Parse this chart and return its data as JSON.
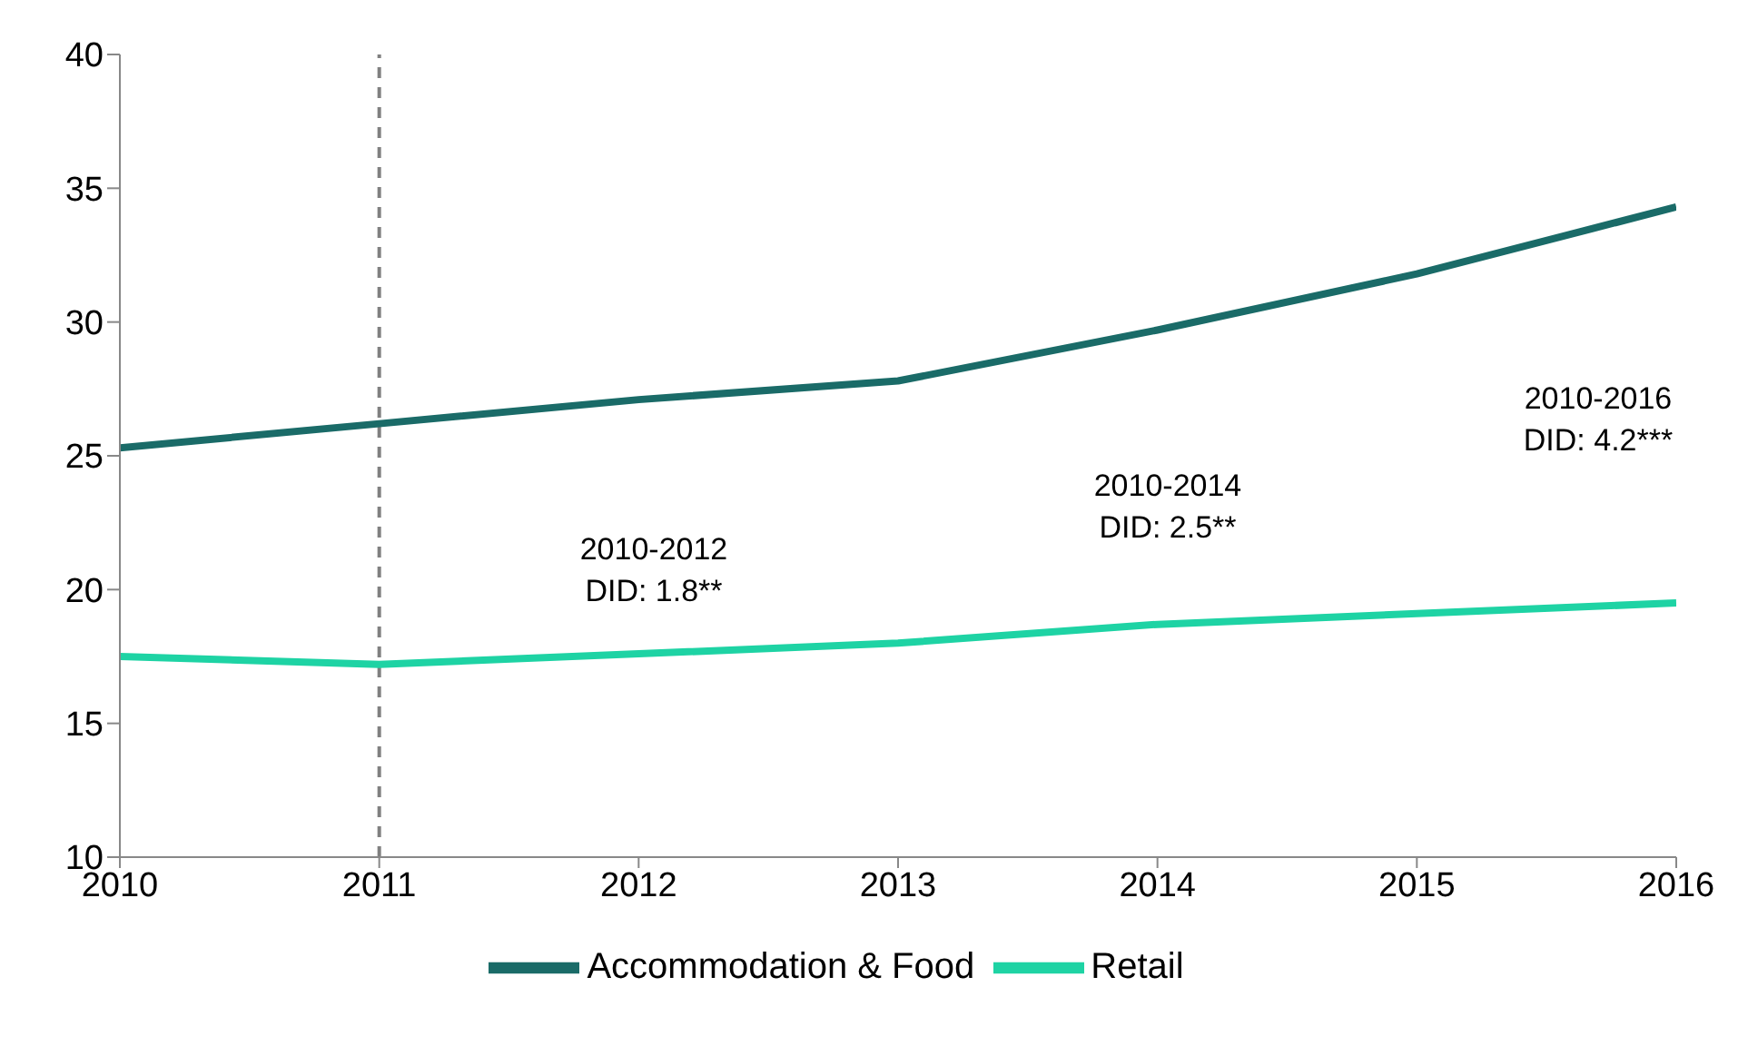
{
  "chart_data": {
    "type": "line",
    "x": [
      2010,
      2011,
      2012,
      2013,
      2014,
      2015,
      2016
    ],
    "series": [
      {
        "name": "Accommodation & Food",
        "color": "#1a6b68",
        "values": [
          25.3,
          26.2,
          27.1,
          27.8,
          29.7,
          31.8,
          34.3
        ]
      },
      {
        "name": "Retail",
        "color": "#1ed3a4",
        "values": [
          17.5,
          17.2,
          17.6,
          18.0,
          18.7,
          19.1,
          19.5
        ]
      }
    ],
    "xlim": [
      2010,
      2016
    ],
    "xticks": [
      2010,
      2011,
      2012,
      2013,
      2014,
      2015,
      2016
    ],
    "ylim": [
      10,
      40
    ],
    "yticks": [
      10,
      15,
      20,
      25,
      30,
      35,
      40
    ],
    "ref_lines": [
      {
        "axis": "x",
        "value": 2011,
        "color": "#808080",
        "line_style": "dashed"
      }
    ],
    "annotations": [
      "2010-2012\nDID: 1.8**",
      "2010-2014\nDID: 2.5**",
      "2010-2016\nDID: 4.2***"
    ],
    "grid": false,
    "legend": "bottom",
    "marker": "none",
    "line_style": "solid"
  }
}
